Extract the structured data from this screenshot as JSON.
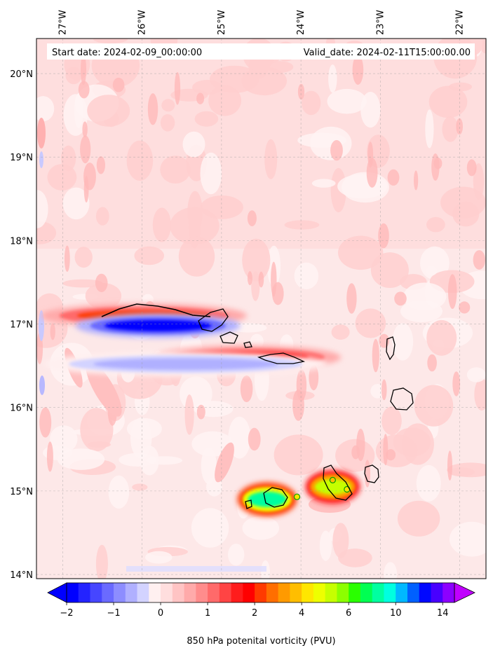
{
  "chart_data": {
    "type": "heatmap",
    "title": "",
    "annotations": {
      "start": "Start date: 2024-02-09_00:00:00",
      "valid": "Valid_date: 2024-02-11T15:00:00.00"
    },
    "lon_ticks": [
      "27°W",
      "26°W",
      "25°W",
      "24°W",
      "23°W",
      "22°W"
    ],
    "lat_ticks": [
      "20°N",
      "19°N",
      "18°N",
      "17°N",
      "16°N",
      "15°N",
      "14°N"
    ],
    "lon_range": [
      -27.33,
      -21.67
    ],
    "lat_range": [
      13.95,
      20.42
    ],
    "grid": true,
    "colorbar": {
      "label": "850 hPa potenital vorticity (PVU)",
      "ticks": [
        "−2",
        "−1",
        "0",
        "1",
        "2",
        "4",
        "6",
        "10",
        "14"
      ],
      "levels": [
        -2,
        -1.75,
        -1.5,
        -1.25,
        -1,
        -0.75,
        -0.5,
        -0.25,
        0,
        0.25,
        0.5,
        0.75,
        1,
        1.25,
        1.5,
        1.75,
        2,
        2.5,
        3,
        3.5,
        4,
        4.5,
        5,
        5.5,
        6,
        7,
        8,
        9,
        10,
        11,
        12,
        13,
        14,
        15
      ],
      "extend": "both",
      "colors": [
        "#0000ff",
        "#2323ff",
        "#4646ff",
        "#6a6aff",
        "#8d8dff",
        "#b0b0ff",
        "#d3d3ff",
        "#fff0f0",
        "#ffdede",
        "#ffc4c4",
        "#ffaaaa",
        "#ff8c8c",
        "#ff6a6a",
        "#ff4444",
        "#ff1c1c",
        "#ff0000",
        "#ff3a00",
        "#ff6e00",
        "#ff9a00",
        "#ffbe00",
        "#ffe600",
        "#eeff00",
        "#c6ff00",
        "#8cff00",
        "#2aff00",
        "#00ff52",
        "#00ffa0",
        "#00ffe0",
        "#00b8ff",
        "#0060ff",
        "#0008ff",
        "#4800ff",
        "#8c00ff"
      ],
      "under_color": "#0000ff",
      "over_color": "#c000ff"
    },
    "background_level_pvu": 0.3,
    "features": [
      {
        "name": "shear-line-north-positive",
        "lon": [
          -27.1,
          -24.85
        ],
        "lat_center": 17.1,
        "pvu_peak": 2.0
      },
      {
        "name": "shear-line-north-negative",
        "lon": [
          -26.7,
          -24.9
        ],
        "lat_center": 16.98,
        "pvu_peak": -2.0
      },
      {
        "name": "shear-line-south-positive",
        "lon": [
          -25.7,
          -23.65
        ],
        "lat_center": 16.6,
        "pvu_peak": 1.8
      },
      {
        "name": "shear-line-south-negative",
        "lon": [
          -27.0,
          -23.9
        ],
        "lat_center": 16.52,
        "pvu_peak": -0.6
      },
      {
        "name": "fogo-wake",
        "lon": [
          -24.75,
          -24.1
        ],
        "lat_center": 14.9,
        "pvu_peak": 8.0
      },
      {
        "name": "santiago-wake",
        "lon": [
          -23.9,
          -23.3
        ],
        "lat_center": 15.05,
        "pvu_peak": 5.0
      }
    ],
    "islands": [
      "Santo Antão",
      "São Vicente",
      "Santa Luzia",
      "São Nicolau",
      "Sal",
      "Boa Vista",
      "Maio",
      "Santiago",
      "Fogo",
      "Brava"
    ]
  }
}
